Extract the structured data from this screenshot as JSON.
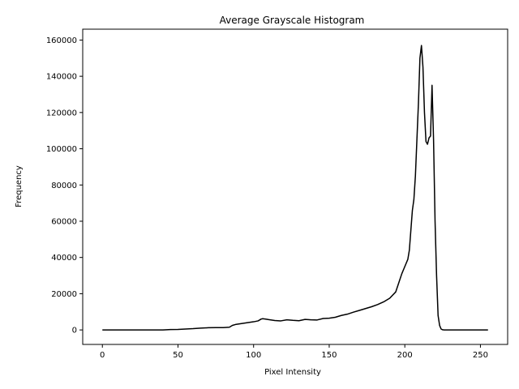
{
  "chart_data": {
    "type": "line",
    "title": "Average Grayscale Histogram",
    "xlabel": "Pixel Intensity",
    "ylabel": "Frequency",
    "xlim": [
      -13,
      268
    ],
    "ylim": [
      -8000,
      166000
    ],
    "x_ticks": [
      0,
      50,
      100,
      150,
      200,
      250
    ],
    "y_ticks": [
      0,
      20000,
      40000,
      60000,
      80000,
      100000,
      120000,
      140000,
      160000
    ],
    "grid": false,
    "legend": "none",
    "line_color": "#000000",
    "series": [
      {
        "x": [
          0,
          10,
          20,
          30,
          40,
          45,
          50,
          55,
          60,
          65,
          70,
          75,
          80,
          84,
          86,
          88,
          92,
          96,
          100,
          103,
          105,
          106,
          108,
          110,
          114,
          118,
          122,
          126,
          130,
          134,
          138,
          142,
          146,
          150,
          154,
          158,
          162,
          166,
          170,
          174,
          178,
          182,
          186,
          190,
          194,
          196,
          198,
          200,
          202,
          203,
          204,
          205,
          206,
          207,
          208,
          209,
          210,
          211,
          212,
          213,
          214,
          215,
          216,
          217,
          218,
          219,
          220,
          221,
          222,
          223,
          224,
          225,
          226,
          227,
          228,
          230,
          235,
          240,
          245,
          250,
          255
        ],
        "values": [
          0,
          0,
          0,
          0,
          0,
          200,
          300,
          500,
          700,
          1000,
          1200,
          1300,
          1300,
          1500,
          2500,
          3000,
          3500,
          4000,
          4500,
          5000,
          6000,
          6200,
          6000,
          5700,
          5200,
          5000,
          5600,
          5300,
          5100,
          5800,
          5600,
          5500,
          6300,
          6500,
          7000,
          8000,
          8700,
          9800,
          10800,
          11800,
          12800,
          14000,
          15500,
          17500,
          21000,
          26000,
          31000,
          35000,
          39000,
          44000,
          55000,
          66000,
          72000,
          85000,
          105000,
          125000,
          150000,
          157000,
          145000,
          120000,
          104000,
          102500,
          106000,
          107000,
          135000,
          105000,
          60000,
          30000,
          8000,
          2500,
          500,
          100,
          0,
          0,
          0,
          0,
          0,
          0,
          0,
          0,
          0
        ]
      }
    ]
  }
}
